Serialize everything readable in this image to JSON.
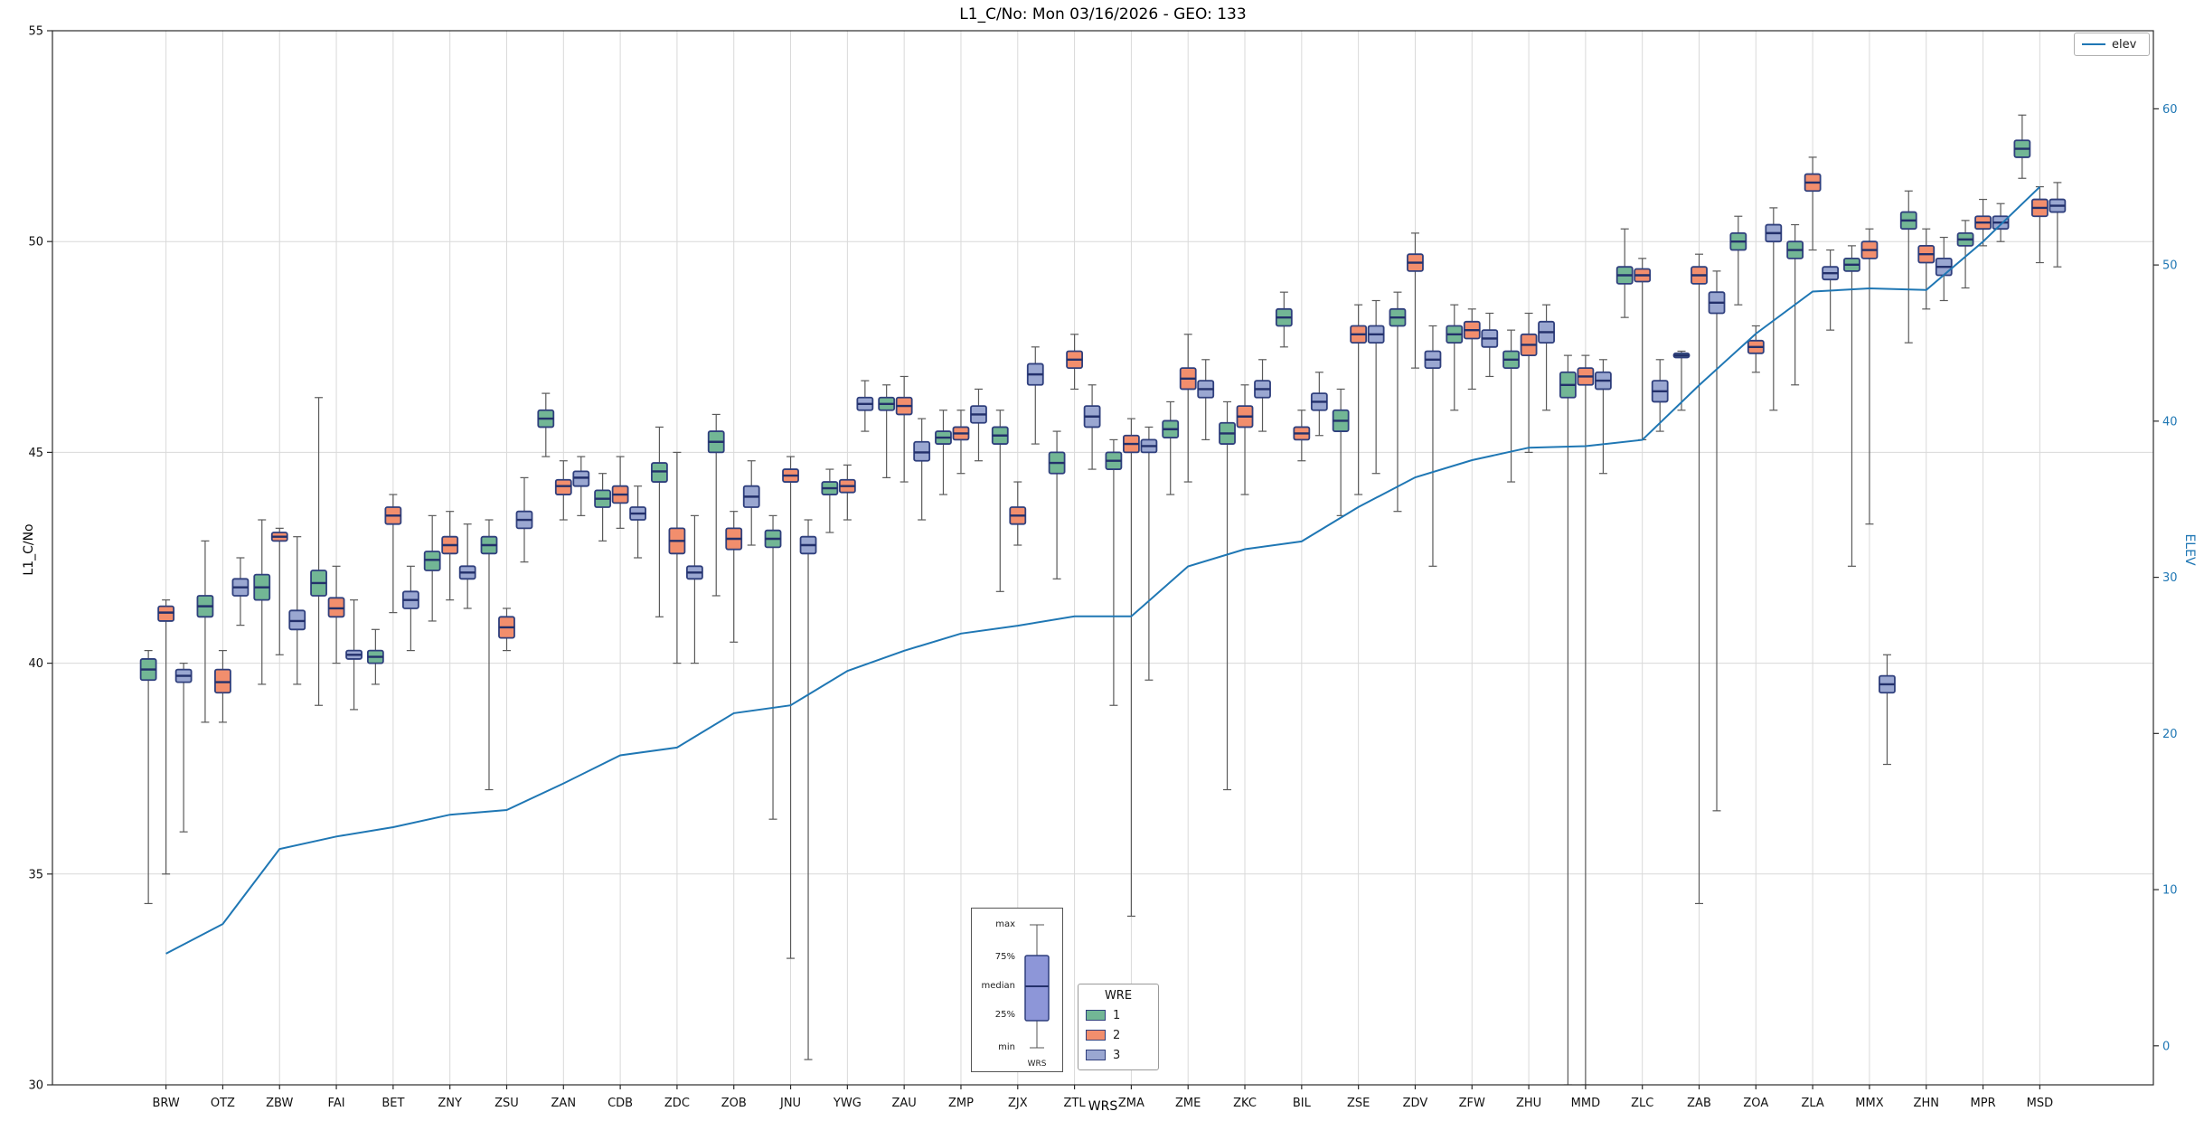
{
  "chart_data": {
    "type": "boxplot",
    "title": "L1_C/No: Mon 03/16/2026 - GEO: 133",
    "xlabel": "WRS",
    "ylabel": "L1_C/No",
    "ylabel_right": "ELEV",
    "ylim": [
      30,
      55
    ],
    "yticks": [
      30,
      35,
      40,
      45,
      50,
      55
    ],
    "ylim_right": [
      -2.5,
      65
    ],
    "yticks_right": [
      0,
      10,
      20,
      30,
      40,
      50,
      60
    ],
    "grid": "on",
    "categories": [
      "BRW",
      "OTZ",
      "ZBW",
      "FAI",
      "BET",
      "ZNY",
      "ZSU",
      "ZAN",
      "CDB",
      "ZDC",
      "ZOB",
      "JNU",
      "YWG",
      "ZAU",
      "ZMP",
      "ZJX",
      "ZTL",
      "ZMA",
      "ZME",
      "ZKC",
      "BIL",
      "ZSE",
      "ZDV",
      "ZFW",
      "ZHU",
      "MMD",
      "ZLC",
      "ZAB",
      "ZOA",
      "ZLA",
      "MMX",
      "ZHN",
      "MPR",
      "MSD"
    ],
    "box_series": [
      {
        "name": "1",
        "color": "#72b695",
        "boxes": [
          [
            34.3,
            39.6,
            39.85,
            40.1,
            40.3
          ],
          [
            38.6,
            41.1,
            41.35,
            41.6,
            42.9
          ],
          [
            39.5,
            41.5,
            41.8,
            42.1,
            43.4
          ],
          [
            39.0,
            41.6,
            41.9,
            42.2,
            46.3
          ],
          [
            39.5,
            40.0,
            40.15,
            40.3,
            40.8
          ],
          [
            41.0,
            42.2,
            42.45,
            42.65,
            43.5
          ],
          [
            37.0,
            42.6,
            42.8,
            43.0,
            43.4
          ],
          [
            44.9,
            45.6,
            45.8,
            46.0,
            46.4
          ],
          [
            42.9,
            43.7,
            43.9,
            44.1,
            44.5
          ],
          [
            41.1,
            44.3,
            44.55,
            44.75,
            45.6
          ],
          [
            41.6,
            45.0,
            45.25,
            45.5,
            45.9
          ],
          [
            36.3,
            42.75,
            42.95,
            43.15,
            43.5
          ],
          [
            43.1,
            44.0,
            44.15,
            44.3,
            44.6
          ],
          [
            44.4,
            46.0,
            46.15,
            46.3,
            46.6
          ],
          [
            44.0,
            45.2,
            45.35,
            45.5,
            46.0
          ],
          [
            41.7,
            45.2,
            45.4,
            45.6,
            46.0
          ],
          [
            42.0,
            44.5,
            44.75,
            45.0,
            45.5
          ],
          [
            39.0,
            44.6,
            44.8,
            45.0,
            45.3
          ],
          [
            44.0,
            45.35,
            45.55,
            45.75,
            46.2
          ],
          [
            37.0,
            45.2,
            45.45,
            45.7,
            46.2
          ],
          [
            47.5,
            48.0,
            48.2,
            48.4,
            48.8
          ],
          [
            43.5,
            45.5,
            45.75,
            46.0,
            46.5
          ],
          [
            43.6,
            48.0,
            48.2,
            48.4,
            48.8
          ],
          [
            46.0,
            47.6,
            47.8,
            48.0,
            48.5
          ],
          [
            44.3,
            47.0,
            47.2,
            47.4,
            47.9
          ],
          [
            30.0,
            46.3,
            46.6,
            46.9,
            47.3
          ],
          [
            48.2,
            49.0,
            49.2,
            49.4,
            50.3
          ],
          [
            46.0,
            47.25,
            47.3,
            47.35,
            47.4
          ],
          [
            48.5,
            49.8,
            50.0,
            50.2,
            50.6
          ],
          [
            46.6,
            49.6,
            49.8,
            50.0,
            50.4
          ],
          [
            42.3,
            49.3,
            49.45,
            49.6,
            49.9
          ],
          [
            47.6,
            50.3,
            50.5,
            50.7,
            51.2
          ],
          [
            48.9,
            49.9,
            50.05,
            50.2,
            50.5
          ],
          [
            51.5,
            52.0,
            52.2,
            52.4,
            53.0
          ]
        ]
      },
      {
        "name": "2",
        "color": "#f28e6d",
        "boxes": [
          [
            35.0,
            41.0,
            41.2,
            41.35,
            41.5
          ],
          [
            38.6,
            39.3,
            39.55,
            39.85,
            40.3
          ],
          [
            40.2,
            42.9,
            43.0,
            43.1,
            43.2
          ],
          [
            40.0,
            41.1,
            41.3,
            41.55,
            42.3
          ],
          [
            41.2,
            43.3,
            43.5,
            43.7,
            44.0
          ],
          [
            41.5,
            42.6,
            42.8,
            43.0,
            43.6
          ],
          [
            40.3,
            40.6,
            40.85,
            41.1,
            41.3
          ],
          [
            43.4,
            44.0,
            44.2,
            44.35,
            44.8
          ],
          [
            43.2,
            43.8,
            44.0,
            44.2,
            44.9
          ],
          [
            40.0,
            42.6,
            42.9,
            43.2,
            45.0
          ],
          [
            40.5,
            42.7,
            42.95,
            43.2,
            43.6
          ],
          [
            33.0,
            44.3,
            44.45,
            44.6,
            44.9
          ],
          [
            43.4,
            44.05,
            44.2,
            44.35,
            44.7
          ],
          [
            44.3,
            45.9,
            46.1,
            46.3,
            46.8
          ],
          [
            44.5,
            45.3,
            45.45,
            45.6,
            46.0
          ],
          [
            42.8,
            43.3,
            43.5,
            43.7,
            44.3
          ],
          [
            46.5,
            47.0,
            47.2,
            47.4,
            47.8
          ],
          [
            34.0,
            45.0,
            45.2,
            45.4,
            45.8
          ],
          [
            44.3,
            46.5,
            46.75,
            47.0,
            47.8
          ],
          [
            44.0,
            45.6,
            45.85,
            46.1,
            46.6
          ],
          [
            44.8,
            45.3,
            45.45,
            45.6,
            46.0
          ],
          [
            44.0,
            47.6,
            47.8,
            48.0,
            48.5
          ],
          [
            47.0,
            49.3,
            49.5,
            49.7,
            50.2
          ],
          [
            46.5,
            47.7,
            47.9,
            48.1,
            48.4
          ],
          [
            45.0,
            47.3,
            47.55,
            47.8,
            48.3
          ],
          [
            30.0,
            46.6,
            46.8,
            47.0,
            47.3
          ],
          [
            45.3,
            49.05,
            49.2,
            49.35,
            49.6
          ],
          [
            34.3,
            49.0,
            49.2,
            49.4,
            49.7
          ],
          [
            46.9,
            47.35,
            47.5,
            47.65,
            48.0
          ],
          [
            49.8,
            51.2,
            51.4,
            51.6,
            52.0
          ],
          [
            43.3,
            49.6,
            49.8,
            50.0,
            50.3
          ],
          [
            48.4,
            49.5,
            49.7,
            49.9,
            50.3
          ],
          [
            49.9,
            50.3,
            50.45,
            50.6,
            51.0
          ],
          [
            49.5,
            50.6,
            50.8,
            51.0,
            51.3
          ]
        ]
      },
      {
        "name": "3",
        "color": "#9aa7d1",
        "boxes": [
          [
            36.0,
            39.55,
            39.7,
            39.85,
            40.0
          ],
          [
            40.9,
            41.6,
            41.8,
            42.0,
            42.5
          ],
          [
            39.5,
            40.8,
            41.0,
            41.25,
            43.0
          ],
          [
            38.9,
            40.1,
            40.2,
            40.3,
            41.5
          ],
          [
            40.3,
            41.3,
            41.5,
            41.7,
            42.3
          ],
          [
            41.3,
            42.0,
            42.15,
            42.3,
            43.3
          ],
          [
            42.4,
            43.2,
            43.4,
            43.6,
            44.4
          ],
          [
            43.5,
            44.2,
            44.4,
            44.55,
            44.9
          ],
          [
            42.5,
            43.4,
            43.55,
            43.7,
            44.2
          ],
          [
            40.0,
            42.0,
            42.15,
            42.3,
            43.5
          ],
          [
            42.8,
            43.7,
            43.95,
            44.2,
            44.8
          ],
          [
            30.6,
            42.6,
            42.8,
            43.0,
            43.4
          ],
          [
            45.5,
            46.0,
            46.15,
            46.3,
            46.7
          ],
          [
            43.4,
            44.8,
            45.0,
            45.25,
            45.8
          ],
          [
            44.8,
            45.7,
            45.9,
            46.1,
            46.5
          ],
          [
            45.2,
            46.6,
            46.85,
            47.1,
            47.5
          ],
          [
            44.6,
            45.6,
            45.85,
            46.1,
            46.6
          ],
          [
            39.6,
            45.0,
            45.15,
            45.3,
            45.6
          ],
          [
            45.3,
            46.3,
            46.5,
            46.7,
            47.2
          ],
          [
            45.5,
            46.3,
            46.5,
            46.7,
            47.2
          ],
          [
            45.4,
            46.0,
            46.2,
            46.4,
            46.9
          ],
          [
            44.5,
            47.6,
            47.8,
            48.0,
            48.6
          ],
          [
            42.3,
            47.0,
            47.2,
            47.4,
            48.0
          ],
          [
            46.8,
            47.5,
            47.7,
            47.9,
            48.3
          ],
          [
            46.0,
            47.6,
            47.85,
            48.1,
            48.5
          ],
          [
            44.5,
            46.5,
            46.7,
            46.9,
            47.2
          ],
          [
            45.5,
            46.2,
            46.45,
            46.7,
            47.2
          ],
          [
            36.5,
            48.3,
            48.55,
            48.8,
            49.3
          ],
          [
            46.0,
            50.0,
            50.2,
            50.4,
            50.8
          ],
          [
            47.9,
            49.1,
            49.25,
            49.4,
            49.8
          ],
          [
            37.6,
            39.3,
            39.5,
            39.7,
            40.2
          ],
          [
            48.6,
            49.2,
            49.4,
            49.6,
            50.1
          ],
          [
            50.0,
            50.3,
            50.45,
            50.6,
            50.9
          ],
          [
            49.4,
            50.7,
            50.85,
            51.0,
            51.4
          ]
        ]
      }
    ],
    "line_series": {
      "name": "elev",
      "axis": "right",
      "values": [
        5.9,
        7.8,
        12.6,
        13.4,
        14.0,
        14.8,
        15.1,
        16.8,
        18.6,
        19.1,
        21.3,
        21.8,
        24.0,
        25.3,
        26.4,
        26.9,
        27.5,
        27.5,
        30.7,
        31.8,
        32.3,
        34.5,
        36.4,
        37.5,
        38.3,
        38.4,
        38.8,
        42.3,
        45.6,
        48.3,
        48.5,
        48.4,
        51.5,
        55.0
      ]
    },
    "inner_legend": {
      "labels": [
        "max",
        "75%",
        "median",
        "25%",
        "min"
      ],
      "xlabel": "WRS"
    },
    "wre_legend": {
      "title": "WRE"
    }
  },
  "colors": {
    "box_edge": "#2f3f7d",
    "median": "#23306b",
    "whisker": "#5a5a5a",
    "elev_line": "#1f77b4",
    "right_axis_text": "#1f77b4",
    "left_axis_text": "#111111",
    "grid": "#d9d9d9",
    "frame": "#2b2b2b",
    "inner_box": "#8d96d8"
  }
}
